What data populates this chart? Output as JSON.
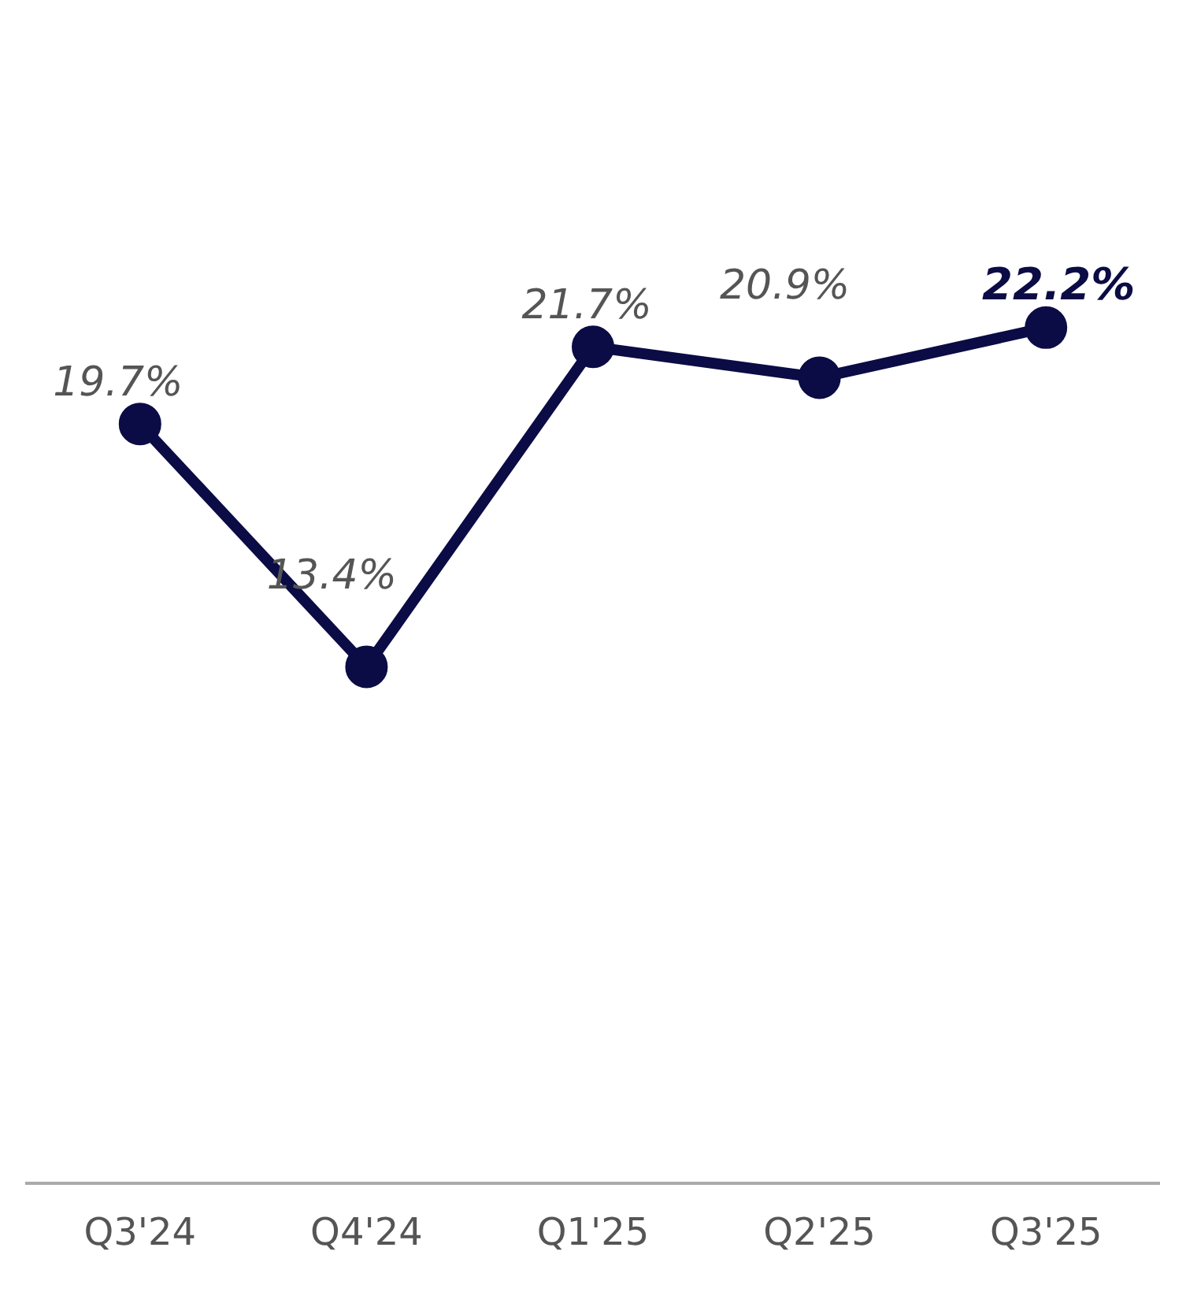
{
  "chart_data": {
    "type": "line",
    "categories": [
      "Q3'24",
      "Q4'24",
      "Q1'25",
      "Q2'25",
      "Q3'25"
    ],
    "series": [
      {
        "color": "#0b0b45",
        "values": [
          19.7,
          13.4,
          21.7,
          20.9,
          22.2
        ],
        "value_labels": [
          "19.7%",
          "13.4%",
          "21.7%",
          "20.9%",
          "22.2%"
        ]
      }
    ],
    "tick_labels": "x",
    "grid": false,
    "legend": false,
    "marker": "circle",
    "line_style": "solid"
  }
}
